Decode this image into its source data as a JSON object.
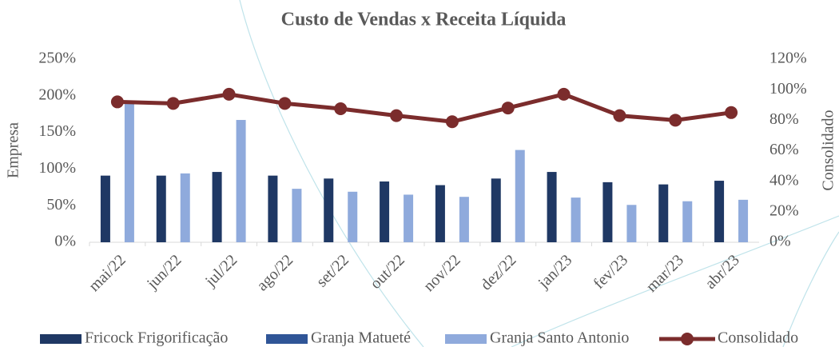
{
  "chart_data": {
    "type": "bar",
    "title": "Custo de Vendas x Receita Líquida",
    "y_label": "Empresa",
    "y2_label": "Consolidado",
    "categories": [
      "mai/22",
      "jun/22",
      "jul/22",
      "ago/22",
      "set/22",
      "out/22",
      "nov/22",
      "dez/22",
      "jan/23",
      "fev/23",
      "mar/23",
      "abr/23"
    ],
    "series": [
      {
        "name": "Fricock Frigorificação",
        "color": "#1f3864",
        "type": "bar",
        "values": [
          91,
          91,
          96,
          91,
          87,
          83,
          78,
          87,
          96,
          82,
          79,
          84
        ]
      },
      {
        "name": "Granja Matueté",
        "color": "#2f5597",
        "type": "bar",
        "values": [
          null,
          null,
          null,
          null,
          null,
          null,
          null,
          null,
          null,
          null,
          null,
          null
        ]
      },
      {
        "name": "Granja Santo Antonio",
        "color": "#8faadc",
        "type": "bar",
        "values": [
          191,
          94,
          167,
          73,
          69,
          65,
          62,
          126,
          61,
          51,
          56,
          58
        ]
      },
      {
        "name": "Consolidado",
        "color": "#7b2c2c",
        "type": "line",
        "axis": "y2",
        "values": [
          92,
          91,
          97,
          91,
          87.5,
          83,
          79,
          88,
          97,
          83,
          80,
          85
        ]
      }
    ],
    "ylim": [
      0,
      250
    ],
    "yticks": [
      {
        "value": 0,
        "label": "0%"
      },
      {
        "value": 50,
        "label": "50%"
      },
      {
        "value": 100,
        "label": "100%"
      },
      {
        "value": 150,
        "label": "150%"
      },
      {
        "value": 200,
        "label": "200%"
      },
      {
        "value": 250,
        "label": "250%"
      }
    ],
    "y2lim": [
      0,
      120
    ],
    "y2ticks": [
      {
        "value": 0,
        "label": "0%"
      },
      {
        "value": 20,
        "label": "20%"
      },
      {
        "value": 40,
        "label": "40%"
      },
      {
        "value": 60,
        "label": "60%"
      },
      {
        "value": 80,
        "label": "80%"
      },
      {
        "value": 100,
        "label": "100%"
      },
      {
        "value": 120,
        "label": "120%"
      }
    ],
    "grid": false,
    "legend": "bottom"
  }
}
